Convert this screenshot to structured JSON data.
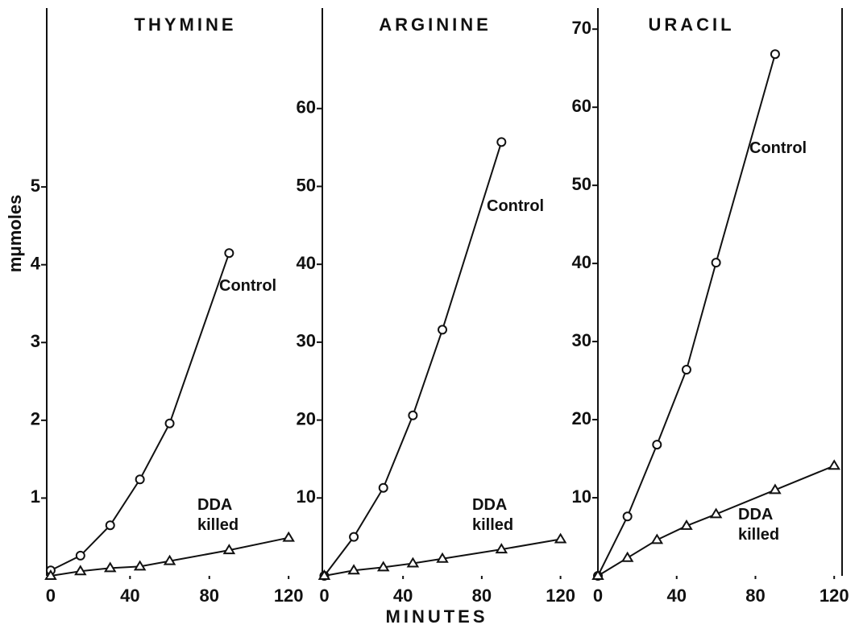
{
  "chart_data": [
    {
      "type": "line",
      "title": "THYMINE",
      "ylabel": "mμmoles",
      "xlim": [
        -2,
        137
      ],
      "xticks": [
        0,
        40,
        80,
        120
      ],
      "ylim": [
        0,
        7.3
      ],
      "yticks": [
        1,
        2,
        3,
        4,
        5
      ],
      "series": [
        {
          "name": "Control",
          "color": "#111111",
          "marker": "circle",
          "x": [
            0,
            15,
            30,
            45,
            60,
            90
          ],
          "values": [
            0.07,
            0.26,
            0.65,
            1.24,
            1.96,
            4.15
          ]
        },
        {
          "name": "DDA killed",
          "color": "#111111",
          "marker": "triangle",
          "x": [
            0,
            15,
            30,
            45,
            60,
            90,
            120
          ],
          "values": [
            0,
            0.06,
            0.1,
            0.12,
            0.19,
            0.33,
            0.49
          ]
        }
      ]
    },
    {
      "type": "line",
      "title": "ARGININE",
      "xlabel": "MINUTES",
      "xlim": [
        -1,
        139
      ],
      "xticks": [
        0,
        40,
        80,
        120
      ],
      "ylim": [
        0,
        72.9
      ],
      "yticks": [
        10,
        20,
        30,
        40,
        50,
        60
      ],
      "series": [
        {
          "name": "Control",
          "color": "#111111",
          "marker": "circle",
          "x": [
            0,
            15,
            30,
            45,
            60,
            90
          ],
          "values": [
            0,
            5,
            11.3,
            20.6,
            31.6,
            55.7
          ]
        },
        {
          "name": "DDA killed",
          "color": "#111111",
          "marker": "triangle",
          "x": [
            0,
            15,
            30,
            45,
            60,
            90,
            120
          ],
          "values": [
            0,
            0.7,
            1.1,
            1.6,
            2.2,
            3.4,
            4.7
          ]
        }
      ]
    },
    {
      "type": "line",
      "title": "URACIL",
      "xlim": [
        0,
        124
      ],
      "xticks": [
        0,
        40,
        80,
        120
      ],
      "ylim": [
        0,
        72.7
      ],
      "yticks": [
        10,
        20,
        30,
        40,
        50,
        60,
        70
      ],
      "series": [
        {
          "name": "Control",
          "color": "#111111",
          "marker": "circle",
          "x": [
            0,
            15,
            30,
            45,
            60,
            90
          ],
          "values": [
            0,
            7.6,
            16.8,
            26.4,
            40.1,
            66.8
          ]
        },
        {
          "name": "DDA killed",
          "color": "#111111",
          "marker": "triangle",
          "x": [
            0,
            15,
            30,
            45,
            60,
            90,
            120
          ],
          "values": [
            0,
            2.3,
            4.6,
            6.4,
            7.9,
            11,
            14.1
          ]
        }
      ]
    }
  ]
}
